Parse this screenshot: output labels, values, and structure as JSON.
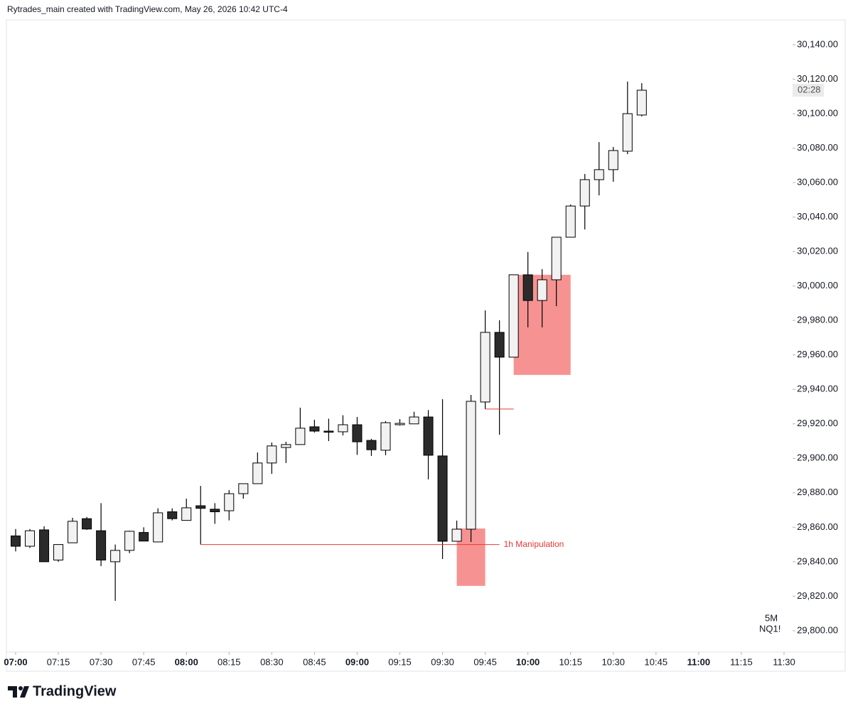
{
  "chart_data": {
    "type": "candlestick",
    "title": "Rytrades_main created with TradingView.com, May 26, 2026 10:42 UTC-4",
    "x": [
      "07:00",
      "07:05",
      "07:10",
      "07:15",
      "07:20",
      "07:25",
      "07:30",
      "07:35",
      "07:40",
      "07:45",
      "07:50",
      "07:55",
      "08:00",
      "08:05",
      "08:10",
      "08:15",
      "08:20",
      "08:25",
      "08:30",
      "08:35",
      "08:40",
      "08:45",
      "08:50",
      "08:55",
      "09:00",
      "09:05",
      "09:10",
      "09:15",
      "09:20",
      "09:25",
      "09:30",
      "09:35",
      "09:40",
      "09:45",
      "09:50",
      "09:55",
      "10:00",
      "10:05",
      "10:10",
      "10:15",
      "10:20",
      "10:25",
      "10:30",
      "10:35",
      "10:40"
    ],
    "open": [
      29855,
      29849,
      29858.5,
      29841,
      29851,
      29865,
      29858,
      29840,
      29846.6,
      29857,
      29851.5,
      29869,
      29864,
      29872.5,
      29870.5,
      29869.6,
      29879.5,
      29885.3,
      29897.3,
      29906.3,
      29908,
      29918.3,
      29915.8,
      29915.4,
      29919.5,
      29910.4,
      29904.7,
      29919.5,
      29920,
      29924,
      29901.4,
      29851.9,
      29858.9,
      29932.7,
      29973.1,
      29958.7,
      30006.5,
      29991.6,
      30003.6,
      30028.3,
      30046.4,
      30061.7,
      30067.5,
      30078.2,
      30099.2
    ],
    "high": [
      29859,
      29859,
      29860.6,
      29850,
      29865.5,
      29866,
      29874,
      29850,
      29858,
      29860,
      29871,
      29871,
      29876.6,
      29884,
      29874,
      29881.6,
      29885.3,
      29903.4,
      29909.2,
      29909.6,
      29929.4,
      29922.4,
      29923,
      29925,
      29924,
      29911.3,
      29921.6,
      29922.8,
      29927,
      29928,
      29934.3,
      29863.9,
      29936.8,
      29985.9,
      29980.1,
      30006.5,
      30019.7,
      30009.8,
      30028.3,
      30047.3,
      30065,
      30083.5,
      30080.7,
      30118.6,
      30117.7
    ],
    "low": [
      29846,
      29848,
      29840,
      29840,
      29851,
      29858.5,
      29837.5,
      29817.3,
      29845,
      29852,
      29851.5,
      29864,
      29864,
      29850,
      29862,
      29864,
      29876.6,
      29885.3,
      29891,
      29897.3,
      29908,
      29915,
      29910,
      29913.3,
      29902,
      29901.4,
      29901.8,
      29919,
      29920,
      29887.8,
      29841.6,
      29851.9,
      29851.5,
      29928.6,
      29913.7,
      29958.7,
      29976,
      29976,
      29988.3,
      30028.3,
      30032.8,
      30052.6,
      30060.5,
      30076.5,
      30098.4
    ],
    "close": [
      29849,
      29858,
      29840,
      29850,
      29863.5,
      29859,
      29841,
      29846.6,
      29857.7,
      29852,
      29868.4,
      29865,
      29871.3,
      29871,
      29869,
      29879.5,
      29885.3,
      29897.3,
      29907.2,
      29908,
      29917.5,
      29915.8,
      29915.4,
      29919.5,
      29909.6,
      29905,
      29920.7,
      29920.3,
      29924,
      29901.8,
      29851.9,
      29858.9,
      29933.1,
      29973.1,
      29958.7,
      30006.5,
      29991.6,
      30003.6,
      30028.3,
      30046.4,
      30061.7,
      30067.5,
      30078.6,
      30100,
      30113.6
    ],
    "up_color": "#f2f2f2",
    "down_color": "#2b2b2b",
    "xlim": [
      "06:57",
      "11:33"
    ],
    "xticks": [
      "07:00",
      "07:15",
      "07:30",
      "07:45",
      "08:00",
      "08:15",
      "08:30",
      "08:45",
      "09:00",
      "09:15",
      "09:30",
      "09:45",
      "10:00",
      "10:15",
      "10:30",
      "10:45",
      "11:00",
      "11:15",
      "11:30"
    ],
    "ylim": [
      29787.6,
      30154.4
    ],
    "yticks": [
      {
        "value": 29800,
        "label": "29,800.00"
      },
      {
        "value": 29820,
        "label": "29,820.00"
      },
      {
        "value": 29840,
        "label": "29,840.00"
      },
      {
        "value": 29860,
        "label": "29,860.00"
      },
      {
        "value": 29880,
        "label": "29,880.00"
      },
      {
        "value": 29900,
        "label": "29,900.00"
      },
      {
        "value": 29920,
        "label": "29,920.00"
      },
      {
        "value": 29940,
        "label": "29,940.00"
      },
      {
        "value": 29960,
        "label": "29,960.00"
      },
      {
        "value": 29980,
        "label": "29,980.00"
      },
      {
        "value": 30000,
        "label": "30,000.00"
      },
      {
        "value": 30020,
        "label": "30,020.00"
      },
      {
        "value": 30040,
        "label": "30,040.00"
      },
      {
        "value": 30060,
        "label": "30,060.00"
      },
      {
        "value": 30080,
        "label": "30,080.00"
      },
      {
        "value": 30100,
        "label": "30,100.00"
      },
      {
        "value": 30120,
        "label": "30,120.00"
      },
      {
        "value": 30140,
        "label": "30,140.00"
      }
    ],
    "zones": [
      {
        "start": "09:35",
        "end": "09:45",
        "low": 29826,
        "high": 29859.3,
        "color": "#f69392"
      },
      {
        "start": "09:55",
        "end": "10:15",
        "low": 29948.4,
        "high": 30006.5,
        "color": "#f69392"
      }
    ],
    "levels": [
      {
        "price": 29850,
        "start": "08:05",
        "end": "09:50",
        "text": "1h Manipulation",
        "color": "#e53935"
      },
      {
        "price": 29928.6,
        "start": "09:45",
        "end": "09:55",
        "color": "#e53935"
      }
    ],
    "countdown": "02:28",
    "interval": "5M",
    "symbol": "NQ1!",
    "brand": "TradingView"
  }
}
